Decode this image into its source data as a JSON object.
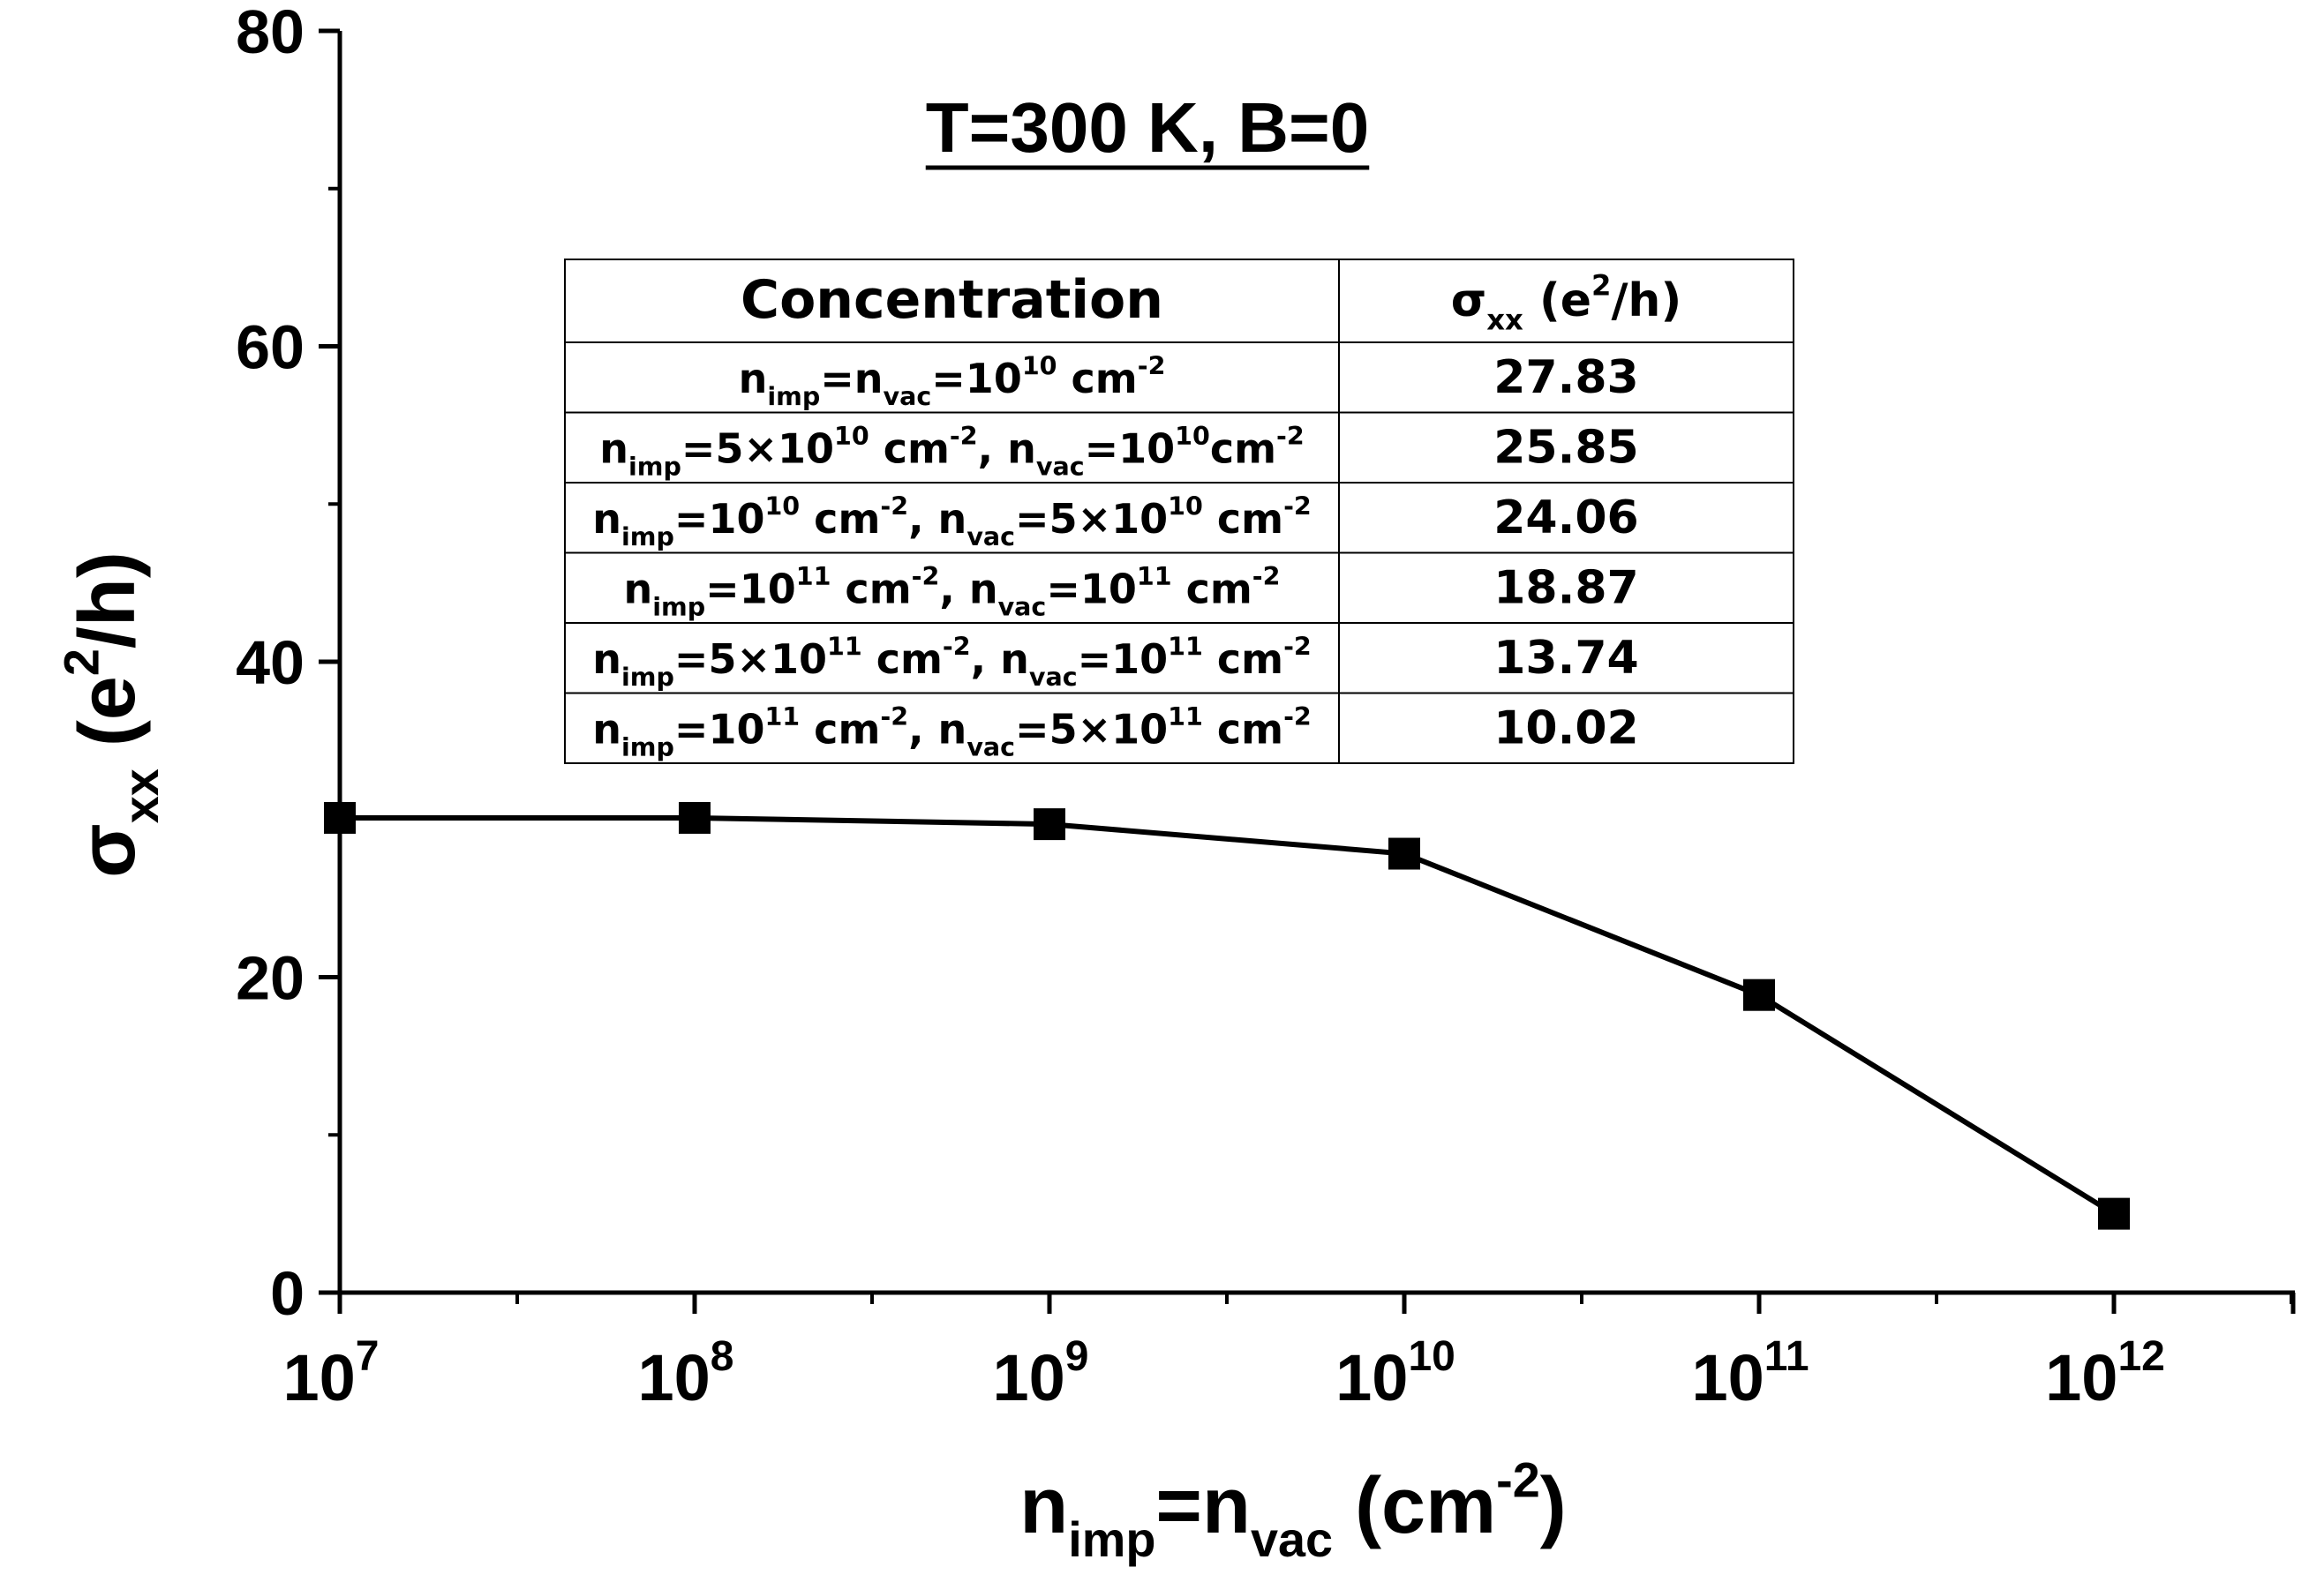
{
  "chart_data": {
    "type": "line",
    "title": "T=300 K, B=0",
    "x_scale": "log",
    "xlim": [
      10000000,
      5000000000000
    ],
    "ylim": [
      0,
      80
    ],
    "x_ticks": [
      {
        "base": "10",
        "exp": "7",
        "value": 10000000
      },
      {
        "base": "10",
        "exp": "8",
        "value": 100000000
      },
      {
        "base": "10",
        "exp": "9",
        "value": 1000000000
      },
      {
        "base": "10",
        "exp": "10",
        "value": 10000000000
      },
      {
        "base": "10",
        "exp": "11",
        "value": 100000000000
      },
      {
        "base": "10",
        "exp": "12",
        "value": 1000000000000
      }
    ],
    "y_ticks": [
      "0",
      "20",
      "40",
      "60",
      "80"
    ],
    "xlabel": {
      "n": "n",
      "imp": "imp",
      "eq": "=n",
      "vac": "vac",
      "unit": " (cm",
      "minus2": "-2",
      "close": ")"
    },
    "ylabel": {
      "sigma": "σ",
      "sub": "xx",
      "paren": " (e",
      "sup": "2",
      "rest": "/h)"
    },
    "marker": "square",
    "color": "#000000",
    "series": [
      {
        "x": [
          10000000,
          100000000,
          1000000000,
          10000000000,
          100000000000,
          1000000000000
        ],
        "y": [
          30.1,
          30.1,
          29.7,
          27.83,
          18.87,
          5.0
        ]
      }
    ],
    "legend": "none",
    "grid": false,
    "table": {
      "headers": {
        "concentration": "Concentration",
        "sigma_a": "σ",
        "sigma_sub": "xx",
        "sigma_b": " (e",
        "sigma_sup": "2",
        "sigma_c": "/h)"
      },
      "rows": [
        {
          "value": "27.83",
          "parts": [
            [
              "n",
              ""
            ],
            [
              "imp",
              "sub"
            ],
            [
              "=n",
              ""
            ],
            [
              "vac",
              "sub"
            ],
            [
              "=10",
              ""
            ],
            [
              "10",
              "sup"
            ],
            [
              " cm",
              ""
            ],
            [
              "-2",
              "sup"
            ]
          ]
        },
        {
          "value": "25.85",
          "parts": [
            [
              "n",
              ""
            ],
            [
              "imp",
              "sub"
            ],
            [
              "=5×10",
              ""
            ],
            [
              "10",
              "sup"
            ],
            [
              " cm",
              ""
            ],
            [
              "-2",
              "sup"
            ],
            [
              ", n",
              ""
            ],
            [
              "vac",
              "sub"
            ],
            [
              "=10",
              ""
            ],
            [
              "10",
              "sup"
            ],
            [
              "cm",
              ""
            ],
            [
              "-2",
              "sup"
            ]
          ]
        },
        {
          "value": "24.06",
          "parts": [
            [
              "n",
              ""
            ],
            [
              "imp",
              "sub"
            ],
            [
              "=10",
              ""
            ],
            [
              "10",
              "sup"
            ],
            [
              " cm",
              ""
            ],
            [
              "-2",
              "sup"
            ],
            [
              ", n",
              ""
            ],
            [
              "vac",
              "sub"
            ],
            [
              "=5×10",
              ""
            ],
            [
              "10",
              "sup"
            ],
            [
              " cm",
              ""
            ],
            [
              "-2",
              "sup"
            ]
          ]
        },
        {
          "value": "18.87",
          "parts": [
            [
              "n",
              ""
            ],
            [
              "imp",
              "sub"
            ],
            [
              "=10",
              ""
            ],
            [
              "11",
              "sup"
            ],
            [
              " cm",
              ""
            ],
            [
              "-2",
              "sup"
            ],
            [
              ", n",
              ""
            ],
            [
              "vac",
              "sub"
            ],
            [
              "=10",
              ""
            ],
            [
              "11",
              "sup"
            ],
            [
              " cm",
              ""
            ],
            [
              "-2",
              "sup"
            ]
          ]
        },
        {
          "value": "13.74",
          "parts": [
            [
              "n",
              ""
            ],
            [
              "imp",
              "sub"
            ],
            [
              "=5×10",
              ""
            ],
            [
              "11",
              "sup"
            ],
            [
              " cm",
              ""
            ],
            [
              "-2",
              "sup"
            ],
            [
              ", n",
              ""
            ],
            [
              "vac",
              "sub"
            ],
            [
              "=10",
              ""
            ],
            [
              "11",
              "sup"
            ],
            [
              " cm",
              ""
            ],
            [
              "-2",
              "sup"
            ]
          ]
        },
        {
          "value": "10.02",
          "parts": [
            [
              "n",
              ""
            ],
            [
              "imp",
              "sub"
            ],
            [
              "=10",
              ""
            ],
            [
              "11",
              "sup"
            ],
            [
              " cm",
              ""
            ],
            [
              "-2",
              "sup"
            ],
            [
              ", n",
              ""
            ],
            [
              "vac",
              "sub"
            ],
            [
              "=5×10",
              ""
            ],
            [
              "11",
              "sup"
            ],
            [
              " cm",
              ""
            ],
            [
              "-2",
              "sup"
            ]
          ]
        }
      ]
    }
  }
}
